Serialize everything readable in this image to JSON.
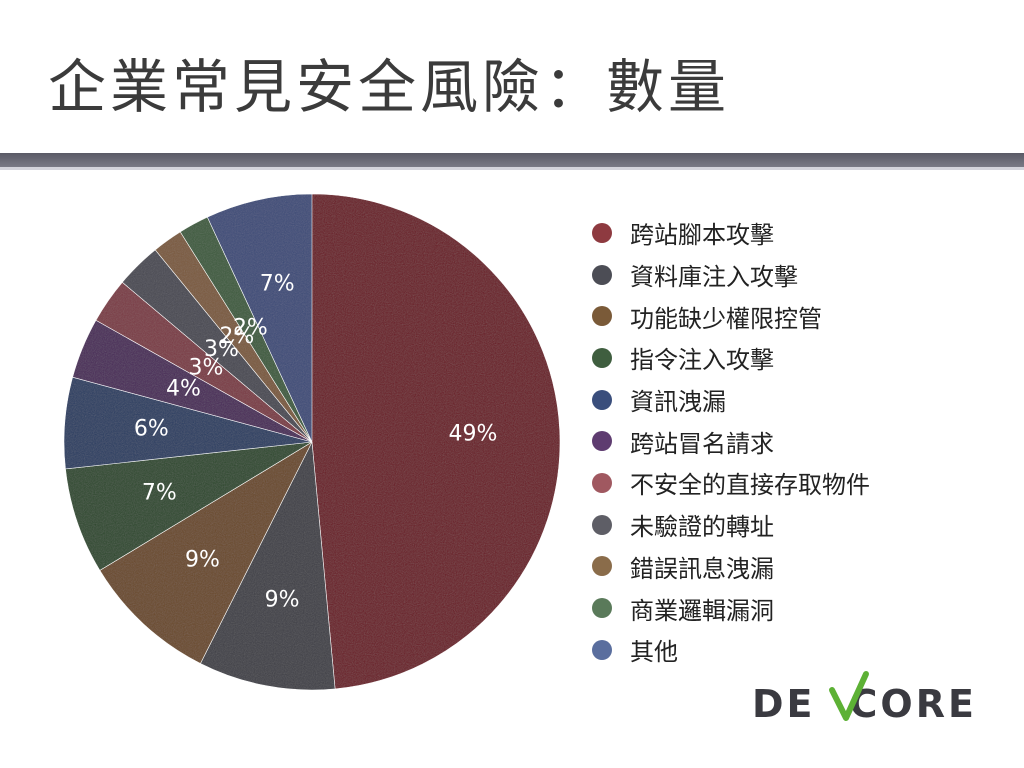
{
  "slide": {
    "title": "企業常見安全風險：數量"
  },
  "chart_data": {
    "type": "pie",
    "categories": [
      "跨站腳本攻擊",
      "資料庫注入攻擊",
      "功能缺少權限控管",
      "指令注入攻擊",
      "資訊洩漏",
      "跨站冒名請求",
      "不安全的直接存取物件",
      "未驗證的轉址",
      "錯誤訊息洩漏",
      "商業邏輯漏洞",
      "其他"
    ],
    "values": [
      49,
      9,
      9,
      7,
      6,
      4,
      3,
      3,
      2,
      2,
      7
    ],
    "labels": [
      "49%",
      "9%",
      "9%",
      "7%",
      "6%",
      "4%",
      "3%",
      "3%",
      "2%",
      "2%",
      "7%"
    ],
    "colors": [
      "#6b1f27",
      "#3f4047",
      "#6b4a2a",
      "#2f4a2f",
      "#2c3c62",
      "#4a2c58",
      "#7a3a44",
      "#4a4a52",
      "#7a5a3c",
      "#3c5c3c",
      "#3c4c78"
    ],
    "legend_colors": [
      "#8e3a40",
      "#4c4d55",
      "#7a5a38",
      "#3f5e3f",
      "#3a4e7c",
      "#5e3c70",
      "#a05860",
      "#5e5e66",
      "#8a6c4a",
      "#5a7a5a",
      "#5a6e9e"
    ],
    "start_angle_deg": 0,
    "direction": "clockwise",
    "legend_position": "right"
  },
  "logo": {
    "text": "DE CORE",
    "name": "DEVCORE"
  }
}
